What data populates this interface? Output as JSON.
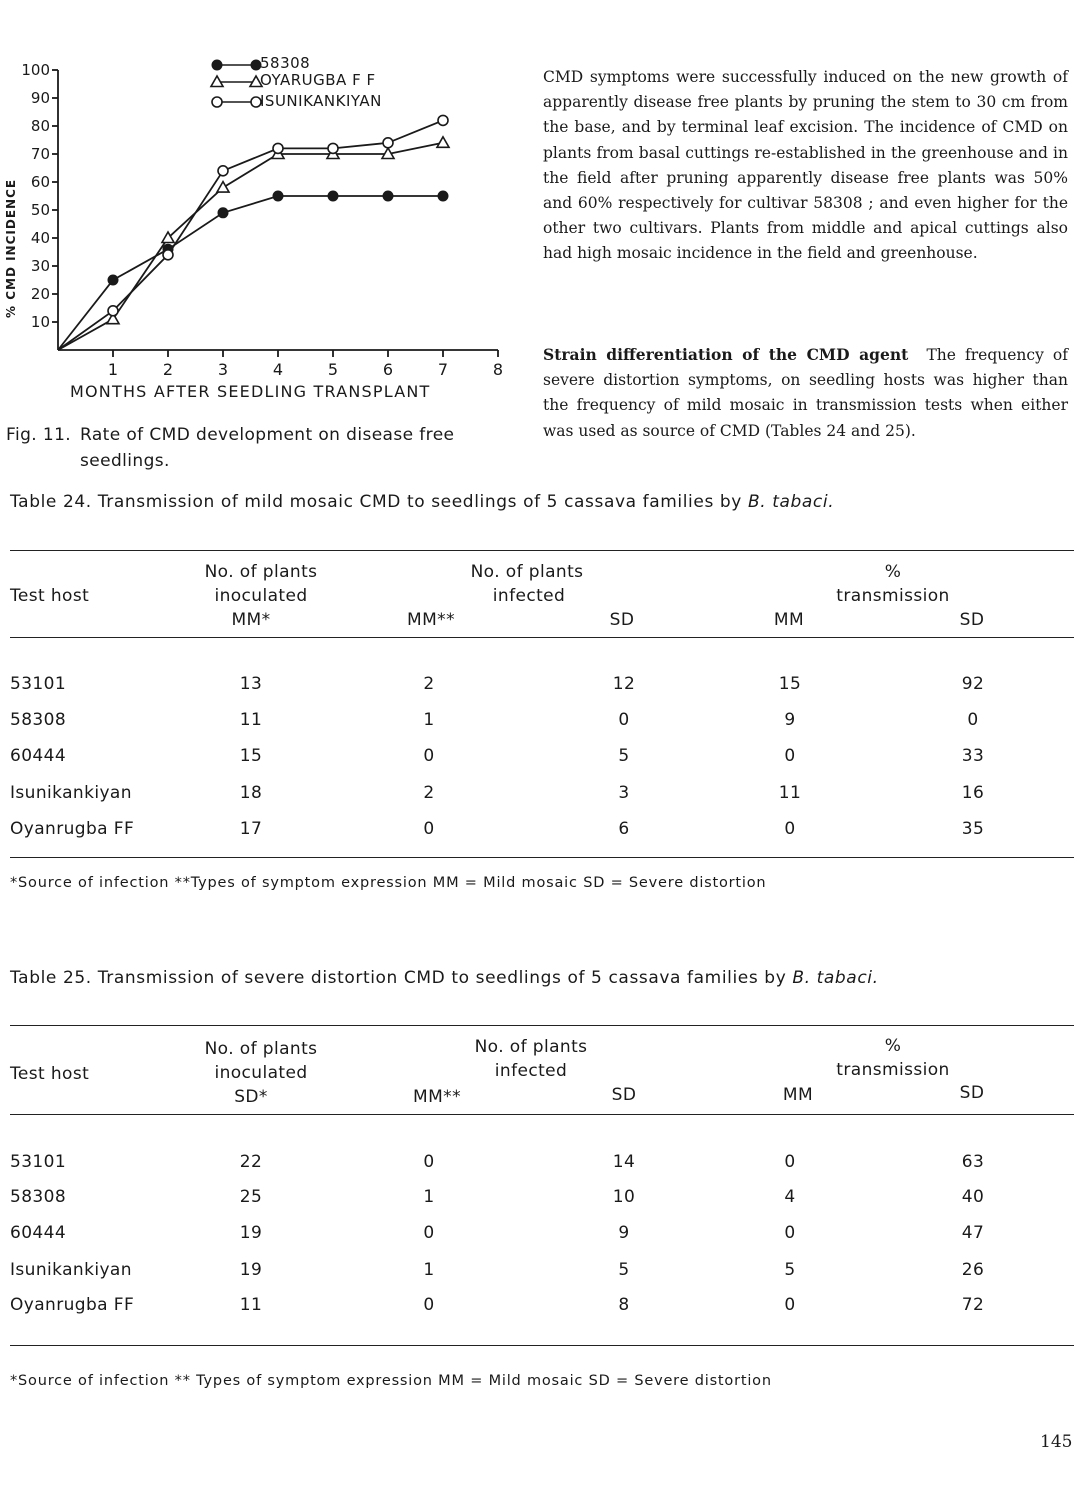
{
  "figure": {
    "caption_number": "Fig. 11.",
    "caption_line1": "Rate of CMD development on disease free",
    "caption_line2": "seedlings.",
    "chart_data": {
      "type": "line",
      "xlabel": "MONTHS AFTER SEEDLING TRANSPLANT",
      "ylabel": "% CMD INCIDENCE",
      "x_ticks": [
        "1",
        "2",
        "3",
        "4",
        "5",
        "6",
        "7",
        "8"
      ],
      "y_ticks": [
        "10",
        "20",
        "30",
        "40",
        "50",
        "60",
        "70",
        "80",
        "90",
        "100"
      ],
      "xlim": [
        0,
        8
      ],
      "ylim": [
        0,
        100
      ],
      "grid": false,
      "legend_position": "top",
      "series": [
        {
          "name": "58308",
          "marker": "filled-circle",
          "x": [
            0,
            1,
            2,
            3,
            4,
            5,
            6,
            7
          ],
          "y": [
            0,
            25,
            36,
            49,
            55,
            55,
            55,
            55
          ]
        },
        {
          "name": "OYARUGBA F F",
          "marker": "open-triangle",
          "x": [
            0,
            1,
            2,
            3,
            4,
            5,
            6,
            7
          ],
          "y": [
            0,
            11,
            40,
            58,
            70,
            70,
            70,
            74
          ]
        },
        {
          "name": "ISUNIKANKIYAN",
          "marker": "open-circle",
          "x": [
            0,
            1,
            2,
            3,
            4,
            5,
            6,
            7
          ],
          "y": [
            0,
            14,
            34,
            64,
            72,
            72,
            74,
            82
          ]
        }
      ]
    }
  },
  "paragraph1": "CMD symptoms were successfully induced on the new growth of apparently disease free plants by pruning the stem to 30 cm from the base, and by terminal leaf excision. The incidence of CMD on plants from basal cuttings re-established in the greenhouse and in the field after pruning apparently disease free plants was 50% and 60% respectively for cultivar 58308 ; and even higher for the other two cultivars. Plants from middle and apical cuttings also had high mosaic incidence in the field and greenhouse.",
  "paragraph2": {
    "heading": "Strain differentiation of the CMD agent",
    "body": "The frequency of severe distortion symptoms, on seedling hosts was higher than the frequency of mild mosaic in transmission tests when either was used as source of CMD (Tables 24 and 25)."
  },
  "table24": {
    "caption_prefix": "Table 24.  Transmission of mild mosaic CMD to seedlings of 5 cassava families by ",
    "caption_species": "B. tabaci.",
    "headers": {
      "test_host": "Test host",
      "inoculated_l1": "No. of plants",
      "inoculated_l2": "inoculated",
      "inoculated_l3": "MM*",
      "infected_l1": "No. of plants",
      "infected_l2": "infected",
      "infected_mm": "MM**",
      "infected_sd": "SD",
      "pct_l1": "%",
      "pct_l2": "transmission",
      "pct_mm": "MM",
      "pct_sd": "SD"
    },
    "rows": [
      [
        "53101",
        "13",
        "2",
        "12",
        "15",
        "92"
      ],
      [
        "58308",
        "11",
        "1",
        "0",
        "9",
        "0"
      ],
      [
        "60444",
        "15",
        "0",
        "5",
        "0",
        "33"
      ],
      [
        "Isunikankiyan",
        "18",
        "2",
        "3",
        "11",
        "16"
      ],
      [
        "Oyanrugba FF",
        "17",
        "0",
        "6",
        "0",
        "35"
      ]
    ],
    "footnote": "*Source of infection  **Types of symptom expression  MM = Mild mosaic  SD = Severe distortion"
  },
  "table25": {
    "caption_prefix": "Table 25.  Transmission of severe distortion CMD to seedlings of 5 cassava families by ",
    "caption_species": "B. tabaci.",
    "headers": {
      "test_host": "Test host",
      "inoculated_l1": "No. of plants",
      "inoculated_l2": "inoculated",
      "inoculated_l3": "SD*",
      "infected_l1": "No. of plants",
      "infected_l2": "infected",
      "infected_mm": "MM**",
      "infected_sd": "SD",
      "pct_l1": "%",
      "pct_l2": "transmission",
      "pct_mm": "MM",
      "pct_sd": "SD"
    },
    "rows": [
      [
        "53101",
        "22",
        "0",
        "14",
        "0",
        "63"
      ],
      [
        "58308",
        "25",
        "1",
        "10",
        "4",
        "40"
      ],
      [
        "60444",
        "19",
        "0",
        "9",
        "0",
        "47"
      ],
      [
        "Isunikankiyan",
        "19",
        "1",
        "5",
        "5",
        "26"
      ],
      [
        "Oyanrugba FF",
        "11",
        "0",
        "8",
        "0",
        "72"
      ]
    ],
    "footnote": "*Source of infection  ** Types of symptom expression  MM = Mild mosaic  SD = Severe distortion"
  },
  "page_number": "145"
}
